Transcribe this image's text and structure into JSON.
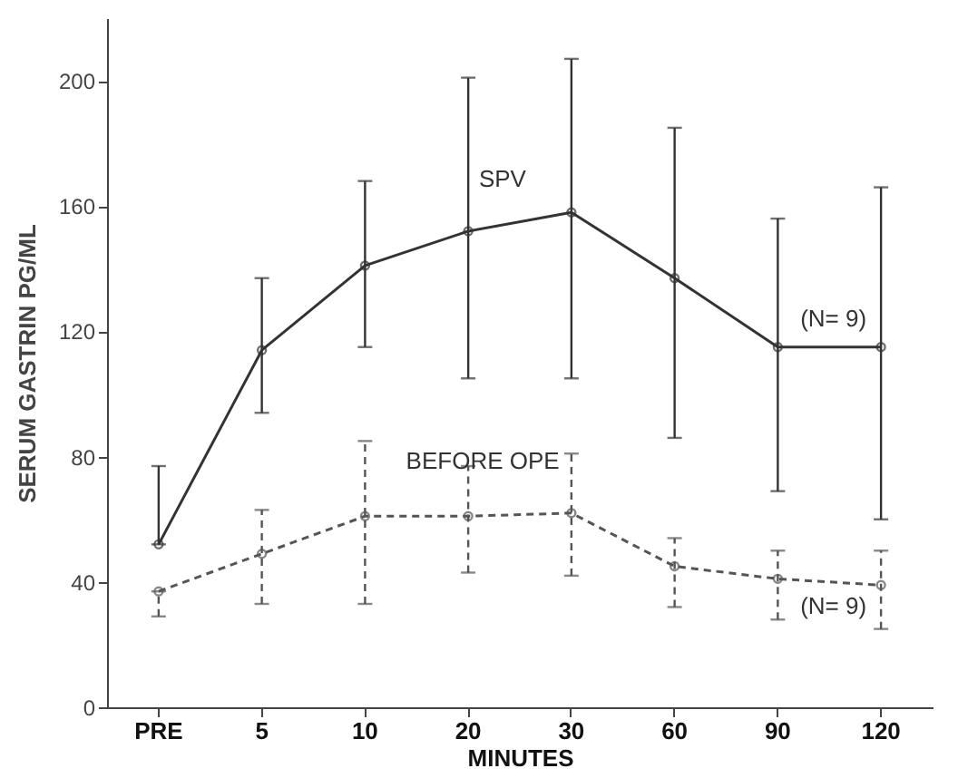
{
  "chart_data": {
    "type": "line",
    "xlabel": "MINUTES",
    "ylabel": "SERUM GASTRIN PG/ML",
    "categories": [
      "PRE",
      "5",
      "10",
      "20",
      "30",
      "60",
      "90",
      "120"
    ],
    "series": [
      {
        "name": "SPV",
        "color": "#333333",
        "line_style": "solid",
        "values": [
          52,
          114,
          141,
          152,
          158,
          137,
          115,
          115
        ],
        "errors": [
          [
            52,
            77
          ],
          [
            94,
            137
          ],
          [
            115,
            168
          ],
          [
            105,
            201
          ],
          [
            105,
            207
          ],
          [
            86,
            185
          ],
          [
            69,
            156
          ],
          [
            60,
            166
          ]
        ]
      },
      {
        "name": "BEFORE OPE",
        "color": "#555555",
        "line_style": "dashed",
        "values": [
          37,
          49,
          61,
          61,
          62,
          45,
          41,
          39
        ],
        "errors": [
          [
            29,
            37
          ],
          [
            33,
            63
          ],
          [
            33,
            85
          ],
          [
            43,
            77
          ],
          [
            42,
            81
          ],
          [
            32,
            54
          ],
          [
            28,
            50
          ],
          [
            25,
            50
          ]
        ]
      }
    ],
    "annotations": [
      {
        "text": "(N= 9)",
        "x": "120",
        "y": 124
      },
      {
        "text": "(N= 9)",
        "x": "120",
        "y": 32
      }
    ],
    "ylim": [
      0,
      220
    ],
    "yticks": [
      0,
      40,
      80,
      120,
      160,
      200
    ],
    "marker": "circle",
    "legend": false,
    "grid": false
  }
}
